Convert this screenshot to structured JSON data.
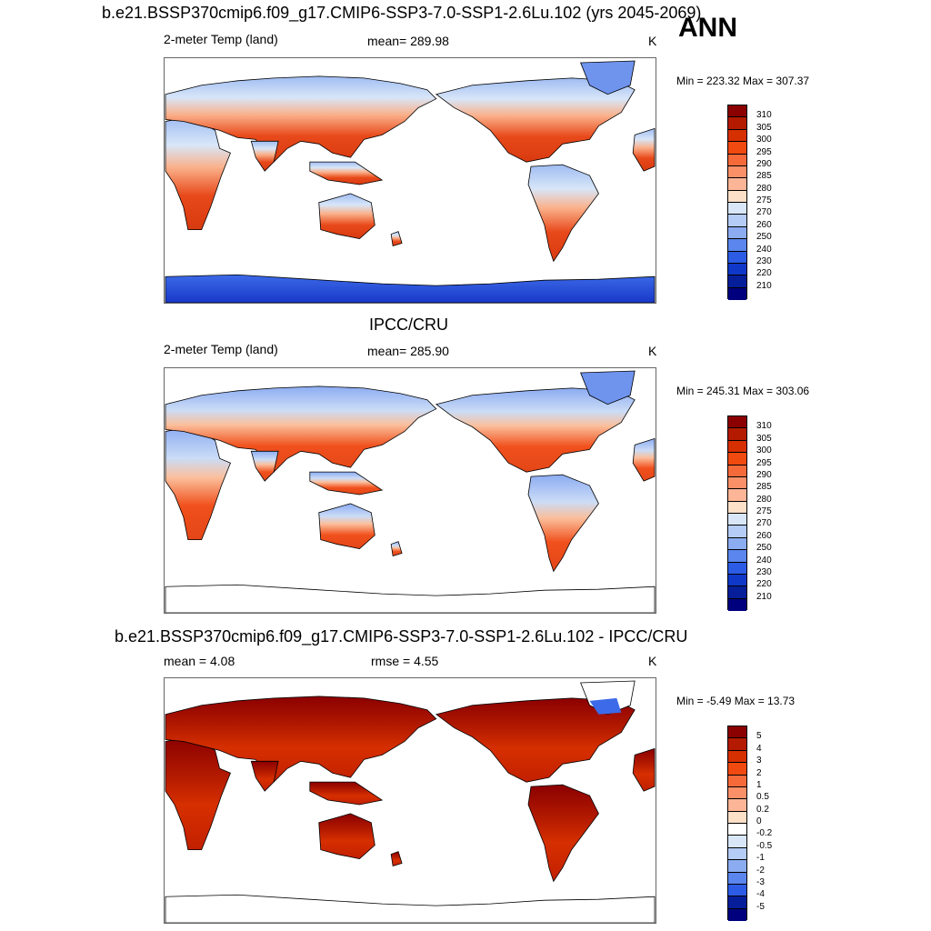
{
  "season": "ANN",
  "panels": [
    {
      "title": "b.e21.BSSP370cmip6.f09_g17.CMIP6-SSP3-7.0-SSP1-2.6Lu.102 (yrs 2045-2069)",
      "left_label": "2-meter Temp (land)",
      "center_label": "mean= 289.98",
      "units": "K",
      "minmax": "Min = 223.32 Max = 307.37"
    },
    {
      "title": "IPCC/CRU",
      "left_label": "2-meter Temp (land)",
      "center_label": "mean= 285.90",
      "units": "K",
      "minmax": "Min = 245.31 Max = 303.06"
    },
    {
      "title": "b.e21.BSSP370cmip6.f09_g17.CMIP6-SSP3-7.0-SSP1-2.6Lu.102 - IPCC/CRU",
      "left_label": "mean =   4.08",
      "center_label": "rmse =   4.55",
      "units": "K",
      "minmax": "Min =  -5.49 Max =  13.73"
    }
  ],
  "chart_data": [
    {
      "type": "heatmap",
      "title": "b.e21.BSSP370cmip6.f09_g17.CMIP6-SSP3-7.0-SSP1-2.6Lu.102 (yrs 2045-2069)",
      "variable": "2-meter Temp (land)",
      "units": "K",
      "mean": 289.98,
      "min": 223.32,
      "max": 307.37,
      "colorbar_levels": [
        "310",
        "305",
        "300",
        "295",
        "290",
        "285",
        "280",
        "275",
        "270",
        "260",
        "250",
        "240",
        "230",
        "220",
        "210"
      ],
      "colorbar_colors": [
        "#8b0000",
        "#b31a00",
        "#d62f00",
        "#f04a10",
        "#f66a3a",
        "#fa9068",
        "#fcb596",
        "#fde0c8",
        "#d8e6f8",
        "#b4ccf6",
        "#8cacf2",
        "#5a86ee",
        "#2c5ce6",
        "#1038c8",
        "#061e9a",
        "#00007e"
      ]
    },
    {
      "type": "heatmap",
      "title": "IPCC/CRU",
      "variable": "2-meter Temp (land)",
      "units": "K",
      "mean": 285.9,
      "min": 245.31,
      "max": 303.06,
      "colorbar_levels": [
        "310",
        "305",
        "300",
        "295",
        "290",
        "285",
        "280",
        "275",
        "270",
        "260",
        "250",
        "240",
        "230",
        "220",
        "210"
      ],
      "colorbar_colors": [
        "#8b0000",
        "#b31a00",
        "#d62f00",
        "#f04a10",
        "#f66a3a",
        "#fa9068",
        "#fcb596",
        "#fde0c8",
        "#d8e6f8",
        "#b4ccf6",
        "#8cacf2",
        "#5a86ee",
        "#2c5ce6",
        "#1038c8",
        "#061e9a",
        "#00007e"
      ]
    },
    {
      "type": "heatmap",
      "title": "b.e21.BSSP370cmip6.f09_g17.CMIP6-SSP3-7.0-SSP1-2.6Lu.102 - IPCC/CRU",
      "units": "K",
      "mean": 4.08,
      "rmse": 4.55,
      "min": -5.49,
      "max": 13.73,
      "colorbar_levels": [
        "5",
        "4",
        "3",
        "2",
        "1",
        "0.5",
        "0.2",
        "0",
        "-0.2",
        "-0.5",
        "-1",
        "-2",
        "-3",
        "-4",
        "-5"
      ],
      "colorbar_colors": [
        "#8b0000",
        "#b31a00",
        "#d62f00",
        "#f04a10",
        "#f66a3a",
        "#fa9068",
        "#fcb596",
        "#fde0c8",
        "#ffffff",
        "#d8e6f8",
        "#b4ccf6",
        "#8cacf2",
        "#5a86ee",
        "#2c5ce6",
        "#061e9a",
        "#00007e"
      ]
    }
  ]
}
